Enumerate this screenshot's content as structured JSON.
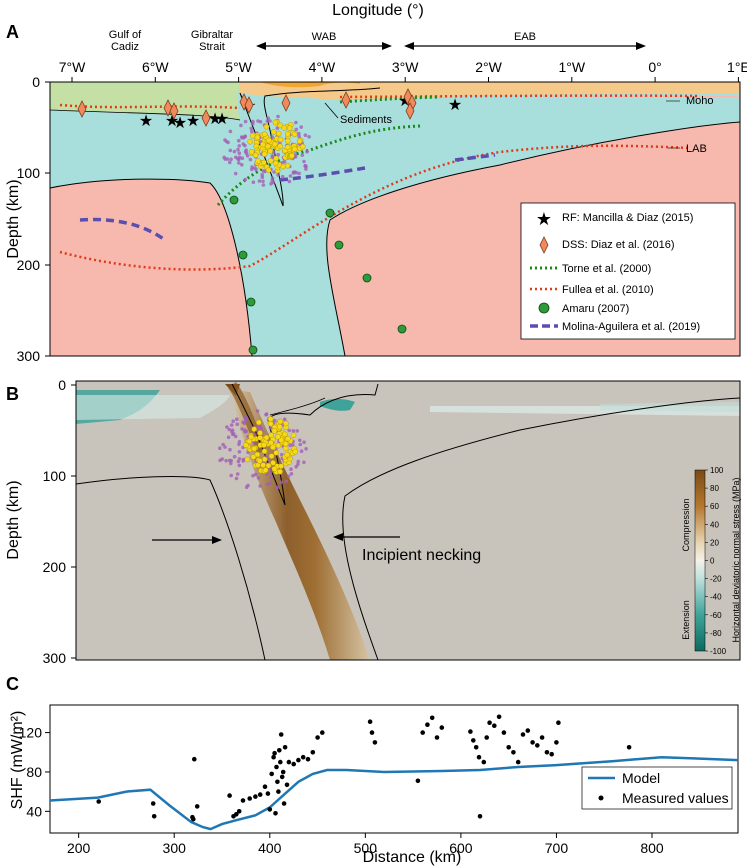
{
  "panels": {
    "a": {
      "label": "A",
      "top_axis_label": "Longitude (°)",
      "lon_ticks": [
        "7°W",
        "6°W",
        "5°W",
        "4°W",
        "3°W",
        "2°W",
        "1°W",
        "0°",
        "1°E"
      ],
      "y_label": "Depth (km)",
      "y_ticks": [
        "0",
        "100",
        "200",
        "300"
      ],
      "places": {
        "gulf_line1": "Gulf of",
        "gulf_line2": "Cadiz",
        "gib_line1": "Gibraltar",
        "gib_line2": "Strait"
      },
      "domains": {
        "wab": "WAB",
        "eab": "EAB"
      },
      "annotations": {
        "moho": "Moho",
        "lab": "LAB",
        "sediments": "Sediments"
      },
      "legend": [
        {
          "label": "RF: Mancilla & Diaz (2015)",
          "symbol": "star",
          "color": "#1414a0"
        },
        {
          "label": "DSS: Diaz et al. (2016)",
          "symbol": "diamond",
          "color": "#f08a5d"
        },
        {
          "label": "Torne et al. (2000)",
          "symbol": "dotted-line",
          "color": "#1a8a1a"
        },
        {
          "label": "Fullea et al. (2010)",
          "symbol": "dotted-line",
          "color": "#e03a1a"
        },
        {
          "label": "Amaru (2007)",
          "symbol": "circle",
          "color": "#2e9a3a"
        },
        {
          "label": "Molina-Aguilera et al. (2019)",
          "symbol": "dashed-line",
          "color": "#5a4fb0"
        }
      ]
    },
    "b": {
      "label": "B",
      "y_label": "Depth (km)",
      "y_ticks": [
        "0",
        "100",
        "200",
        "300"
      ],
      "annotation": "Incipient necking",
      "colorbar": {
        "title": "Horizontal deviatoric normal stress (MPa)",
        "ticks": [
          "100",
          "80",
          "60",
          "40",
          "20",
          "0",
          "-20",
          "-40",
          "-60",
          "-80",
          "-100"
        ],
        "compression_label": "Compression",
        "extension_label": "Extension"
      }
    },
    "c": {
      "label": "C",
      "x_label": "Distance (km)",
      "y_label": "SHF (mW/m²)"
    }
  },
  "chart_data": {
    "type": "scatter",
    "title": "",
    "xlabel": "Distance (km)",
    "ylabel": "SHF (mW/m²)",
    "xlim": [
      170,
      890
    ],
    "ylim": [
      18,
      148
    ],
    "x_ticks": [
      200,
      300,
      400,
      500,
      600,
      700,
      800
    ],
    "y_ticks": [
      40,
      80,
      120
    ],
    "legend_position": "bottom-right",
    "series": [
      {
        "name": "Model",
        "type": "line",
        "color": "#1f77b4",
        "points": [
          [
            170,
            51
          ],
          [
            220,
            54
          ],
          [
            250,
            60
          ],
          [
            275,
            62
          ],
          [
            295,
            46
          ],
          [
            318,
            29
          ],
          [
            330,
            24
          ],
          [
            338,
            22
          ],
          [
            350,
            27
          ],
          [
            365,
            31
          ],
          [
            385,
            36
          ],
          [
            400,
            44
          ],
          [
            415,
            57
          ],
          [
            430,
            70
          ],
          [
            445,
            78
          ],
          [
            460,
            82
          ],
          [
            480,
            82
          ],
          [
            520,
            80
          ],
          [
            580,
            81
          ],
          [
            620,
            82
          ],
          [
            660,
            85
          ],
          [
            700,
            87
          ],
          [
            760,
            91
          ],
          [
            810,
            95
          ],
          [
            840,
            94
          ],
          [
            890,
            92
          ]
        ]
      },
      {
        "name": "Measured values",
        "type": "scatter",
        "color": "#000000",
        "points": [
          [
            221,
            50
          ],
          [
            278,
            48
          ],
          [
            279,
            35
          ],
          [
            319,
            34
          ],
          [
            320,
            32
          ],
          [
            321,
            93
          ],
          [
            324,
            45
          ],
          [
            358,
            56
          ],
          [
            362,
            35
          ],
          [
            365,
            37
          ],
          [
            368,
            40
          ],
          [
            372,
            51
          ],
          [
            379,
            53
          ],
          [
            385,
            55
          ],
          [
            390,
            57
          ],
          [
            395,
            65
          ],
          [
            398,
            58
          ],
          [
            400,
            42
          ],
          [
            402,
            78
          ],
          [
            404,
            95
          ],
          [
            405,
            99
          ],
          [
            406,
            38
          ],
          [
            407,
            85
          ],
          [
            408,
            70
          ],
          [
            409,
            60
          ],
          [
            410,
            102
          ],
          [
            411,
            90
          ],
          [
            412,
            118
          ],
          [
            413,
            75
          ],
          [
            414,
            80
          ],
          [
            415,
            48
          ],
          [
            416,
            105
          ],
          [
            418,
            67
          ],
          [
            420,
            90
          ],
          [
            425,
            88
          ],
          [
            430,
            92
          ],
          [
            435,
            95
          ],
          [
            440,
            93
          ],
          [
            445,
            100
          ],
          [
            450,
            115
          ],
          [
            455,
            120
          ],
          [
            505,
            131
          ],
          [
            507,
            120
          ],
          [
            510,
            110
          ],
          [
            555,
            71
          ],
          [
            560,
            120
          ],
          [
            565,
            128
          ],
          [
            570,
            135
          ],
          [
            575,
            115
          ],
          [
            580,
            125
          ],
          [
            610,
            121
          ],
          [
            613,
            112
          ],
          [
            616,
            105
          ],
          [
            619,
            95
          ],
          [
            620,
            35
          ],
          [
            624,
            90
          ],
          [
            627,
            115
          ],
          [
            630,
            130
          ],
          [
            635,
            127
          ],
          [
            640,
            136
          ],
          [
            645,
            120
          ],
          [
            650,
            105
          ],
          [
            655,
            100
          ],
          [
            660,
            90
          ],
          [
            665,
            118
          ],
          [
            670,
            122
          ],
          [
            675,
            110
          ],
          [
            680,
            107
          ],
          [
            685,
            115
          ],
          [
            690,
            100
          ],
          [
            695,
            98
          ],
          [
            700,
            110
          ],
          [
            702,
            130
          ],
          [
            776,
            105
          ]
        ]
      }
    ]
  }
}
